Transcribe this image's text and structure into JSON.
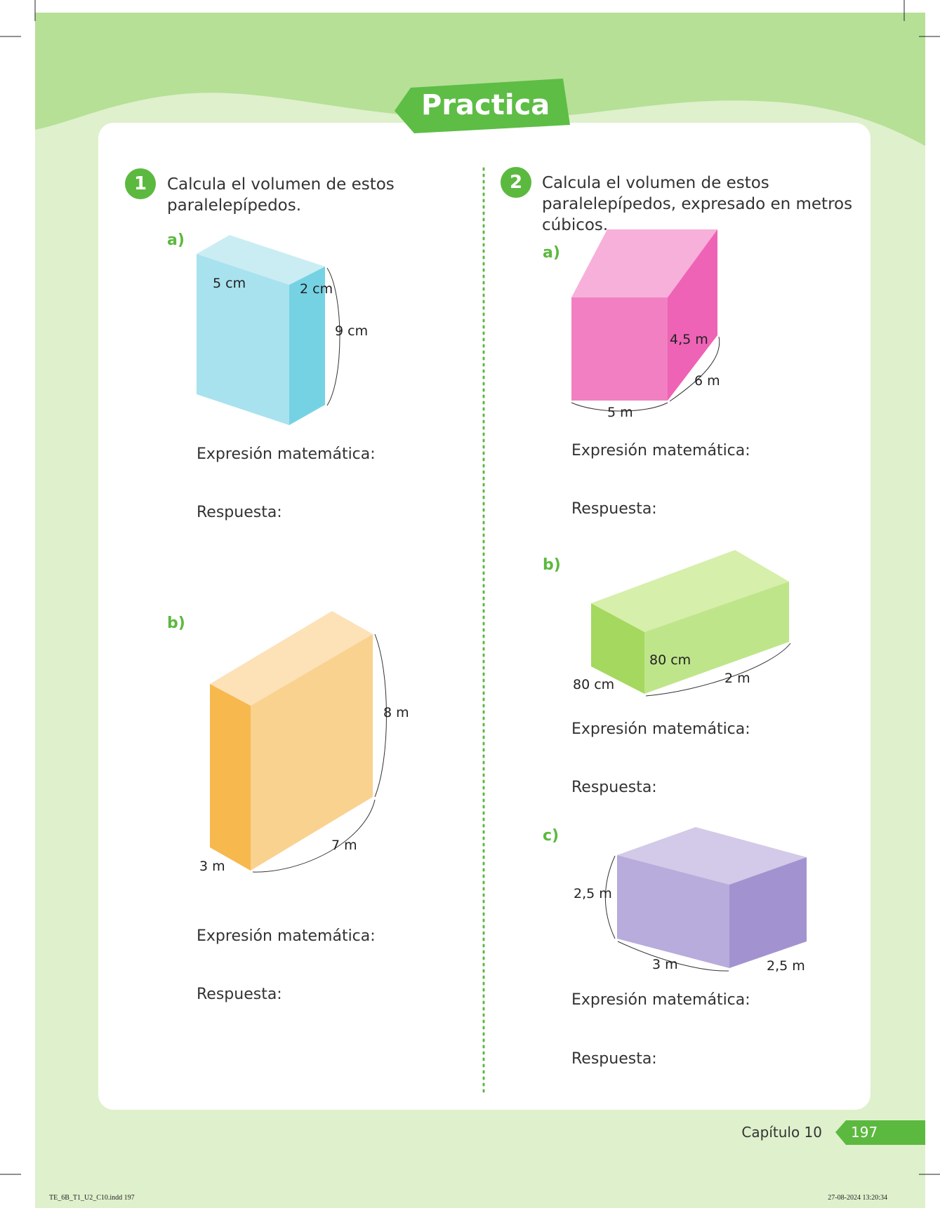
{
  "header": {
    "title": "Practica"
  },
  "exercises": [
    {
      "number": "1",
      "instruction": "Calcula el volumen de estos paralelepípedos.",
      "items": [
        {
          "label": "a)",
          "dimensions": [
            "5 cm",
            "2 cm",
            "9 cm"
          ],
          "expression": "Expresión matemática:",
          "answer": "Respuesta:"
        },
        {
          "label": "b)",
          "dimensions": [
            "8 m",
            "7 m",
            "3 m"
          ],
          "expression": "Expresión matemática:",
          "answer": "Respuesta:"
        }
      ]
    },
    {
      "number": "2",
      "instruction": "Calcula el volumen de estos paralelepípedos, expresado en metros cúbicos.",
      "items": [
        {
          "label": "a)",
          "dimensions": [
            "4,5 m",
            "6 m",
            "5 m"
          ],
          "expression": "Expresión matemática:",
          "answer": "Respuesta:"
        },
        {
          "label": "b)",
          "dimensions": [
            "80 cm",
            "80 cm",
            "2 m"
          ],
          "expression": "Expresión matemática:",
          "answer": "Respuesta:"
        },
        {
          "label": "c)",
          "dimensions": [
            "2,5 m",
            "3 m",
            "2,5 m"
          ],
          "expression": "Expresión matemática:",
          "answer": "Respuesta:"
        }
      ]
    }
  ],
  "footer": {
    "chapter": "Capítulo 10",
    "page": "197"
  },
  "print_info": {
    "file": "TE_6B_T1_U2_C10.indd   197",
    "date": "27-08-2024   13:20:34"
  }
}
